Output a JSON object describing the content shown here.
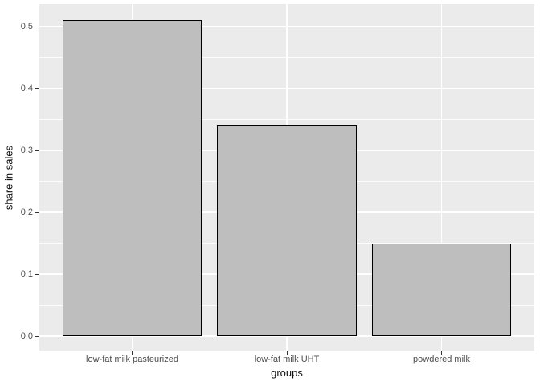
{
  "chart_data": {
    "type": "bar",
    "title": "",
    "categories": [
      "low-fat milk pasteurized",
      "low-fat milk UHT",
      "powdered milk"
    ],
    "values": [
      0.51,
      0.34,
      0.15
    ],
    "xlabel": "groups",
    "ylabel": "share in sales",
    "ytick_labels": [
      "0.0",
      "0.1",
      "0.2",
      "0.3",
      "0.4",
      "0.5"
    ],
    "ytick_values": [
      0,
      0.1,
      0.2,
      0.3,
      0.4,
      0.5
    ],
    "ylim": [
      -0.0255,
      0.5355
    ],
    "grid": "white major and minor horizontal lines, white vertical lines at category centers, on grey panel",
    "legend_position": "none",
    "colors": {
      "bar_fill": "#BEBEBE",
      "bar_border": "#000000",
      "panel_bg": "#EBEBEB",
      "grid_color": "#FFFFFF",
      "tick_mark_color": "#333333",
      "tick_label_color": "#4D4D4D",
      "axis_title_color": "#111111",
      "outer_bg": "#FFFFFF"
    }
  }
}
